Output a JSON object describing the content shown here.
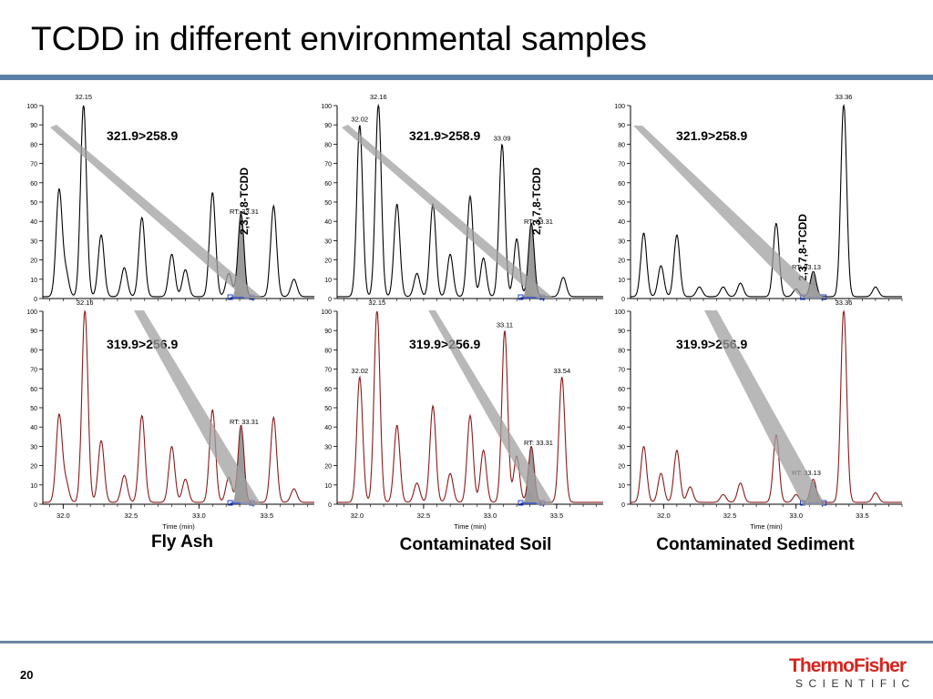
{
  "slide": {
    "title": "TCDD in different environmental samples",
    "page_number": "20",
    "logo_top": "ThermoFisher",
    "logo_bottom": "SCIENTIFIC"
  },
  "chart_data": [
    {
      "type": "line",
      "sample": "Fly Ash",
      "xlabel": "Time (min)",
      "xlim": [
        31.85,
        33.85
      ],
      "xticks": [
        32.0,
        32.5,
        33.0,
        33.5
      ],
      "ylim": [
        0,
        100
      ],
      "yticks": [
        0,
        10,
        20,
        30,
        40,
        50,
        60,
        70,
        80,
        90,
        100
      ],
      "series": [
        {
          "name": "321.9>258.9",
          "color": "#000000",
          "compound_label": "2,3,7,8-TCDD",
          "rt_label": "RT: 33.31",
          "top_label": "32.15",
          "peaks": [
            [
              31.97,
              55
            ],
            [
              32.02,
              12
            ],
            [
              32.15,
              100
            ],
            [
              32.28,
              32
            ],
            [
              32.45,
              15
            ],
            [
              32.58,
              41
            ],
            [
              32.8,
              22
            ],
            [
              32.9,
              14
            ],
            [
              33.1,
              54
            ],
            [
              33.22,
              12
            ],
            [
              33.31,
              43
            ],
            [
              33.55,
              47
            ],
            [
              33.7,
              9
            ]
          ],
          "rt": 33.31
        },
        {
          "name": "319.9>256.9",
          "color": "#8b1a1a",
          "compound_label": "",
          "rt_label": "RT: 33.31",
          "top_label": "32.16",
          "peaks": [
            [
              31.97,
              45
            ],
            [
              32.02,
              10
            ],
            [
              32.16,
              100
            ],
            [
              32.28,
              32
            ],
            [
              32.45,
              14
            ],
            [
              32.58,
              45
            ],
            [
              32.8,
              29
            ],
            [
              32.9,
              12
            ],
            [
              33.1,
              48
            ],
            [
              33.22,
              13
            ],
            [
              33.31,
              40
            ],
            [
              33.55,
              44
            ],
            [
              33.7,
              7
            ]
          ],
          "rt": 33.31
        }
      ]
    },
    {
      "type": "line",
      "sample": "Contaminated Soil",
      "xlabel": "Time (min)",
      "xlim": [
        31.85,
        33.85
      ],
      "xticks": [
        32.0,
        32.5,
        33.0,
        33.5
      ],
      "ylim": [
        0,
        100
      ],
      "yticks": [
        0,
        10,
        20,
        30,
        40,
        50,
        60,
        70,
        80,
        90,
        100
      ],
      "series": [
        {
          "name": "321.9>258.9",
          "color": "#000000",
          "compound_label": "2,3,7,8-TCDD",
          "rt_label": "RT: 33.31",
          "top_label": "32.16",
          "annotations": [
            [
              "32.02",
              32.02,
              89
            ],
            [
              "33.09",
              33.09,
              79
            ]
          ],
          "peaks": [
            [
              32.02,
              89
            ],
            [
              32.16,
              100
            ],
            [
              32.3,
              48
            ],
            [
              32.45,
              12
            ],
            [
              32.57,
              48
            ],
            [
              32.7,
              22
            ],
            [
              32.85,
              52
            ],
            [
              32.95,
              20
            ],
            [
              33.09,
              79
            ],
            [
              33.2,
              30
            ],
            [
              33.31,
              38
            ],
            [
              33.55,
              10
            ]
          ],
          "rt": 33.31
        },
        {
          "name": "319.9>256.9",
          "color": "#8b1a1a",
          "compound_label": "",
          "rt_label": "RT: 33.31",
          "top_label": "32.15",
          "annotations": [
            [
              "32.02",
              32.02,
              65
            ],
            [
              "33.11",
              33.11,
              89
            ],
            [
              "33.54",
              33.54,
              65
            ]
          ],
          "peaks": [
            [
              32.02,
              65
            ],
            [
              32.15,
              100
            ],
            [
              32.3,
              40
            ],
            [
              32.45,
              10
            ],
            [
              32.57,
              50
            ],
            [
              32.7,
              15
            ],
            [
              32.85,
              45
            ],
            [
              32.95,
              27
            ],
            [
              33.11,
              89
            ],
            [
              33.2,
              24
            ],
            [
              33.31,
              29
            ],
            [
              33.54,
              65
            ]
          ],
          "rt": 33.31
        }
      ]
    },
    {
      "type": "line",
      "sample": "Contaminated Sediment",
      "xlabel": "Time (min)",
      "xlim": [
        31.75,
        33.8
      ],
      "xticks": [
        32.0,
        32.5,
        33.0,
        33.5
      ],
      "ylim": [
        0,
        100
      ],
      "yticks": [
        0,
        10,
        20,
        30,
        40,
        50,
        60,
        70,
        80,
        90,
        100
      ],
      "series": [
        {
          "name": "321.9>258.9",
          "color": "#000000",
          "compound_label": "2,3,7,8-TCDD",
          "rt_label": "RT: 33.13",
          "top_label": "33.36",
          "peaks": [
            [
              31.85,
              33
            ],
            [
              31.98,
              16
            ],
            [
              32.1,
              32
            ],
            [
              32.27,
              5
            ],
            [
              32.45,
              5
            ],
            [
              32.58,
              7
            ],
            [
              32.85,
              38
            ],
            [
              33.0,
              4
            ],
            [
              33.13,
              13
            ],
            [
              33.36,
              100
            ],
            [
              33.6,
              5
            ]
          ],
          "rt": 33.13
        },
        {
          "name": "319.9>256.9",
          "color": "#8b1a1a",
          "compound_label": "",
          "rt_label": "RT: 33.13",
          "top_label": "33.36",
          "peaks": [
            [
              31.85,
              29
            ],
            [
              31.98,
              15
            ],
            [
              32.1,
              27
            ],
            [
              32.2,
              8
            ],
            [
              32.45,
              4
            ],
            [
              32.58,
              10
            ],
            [
              32.85,
              35
            ],
            [
              33.0,
              4
            ],
            [
              33.13,
              12
            ],
            [
              33.36,
              100
            ],
            [
              33.6,
              5
            ]
          ],
          "rt": 33.13
        }
      ]
    }
  ]
}
